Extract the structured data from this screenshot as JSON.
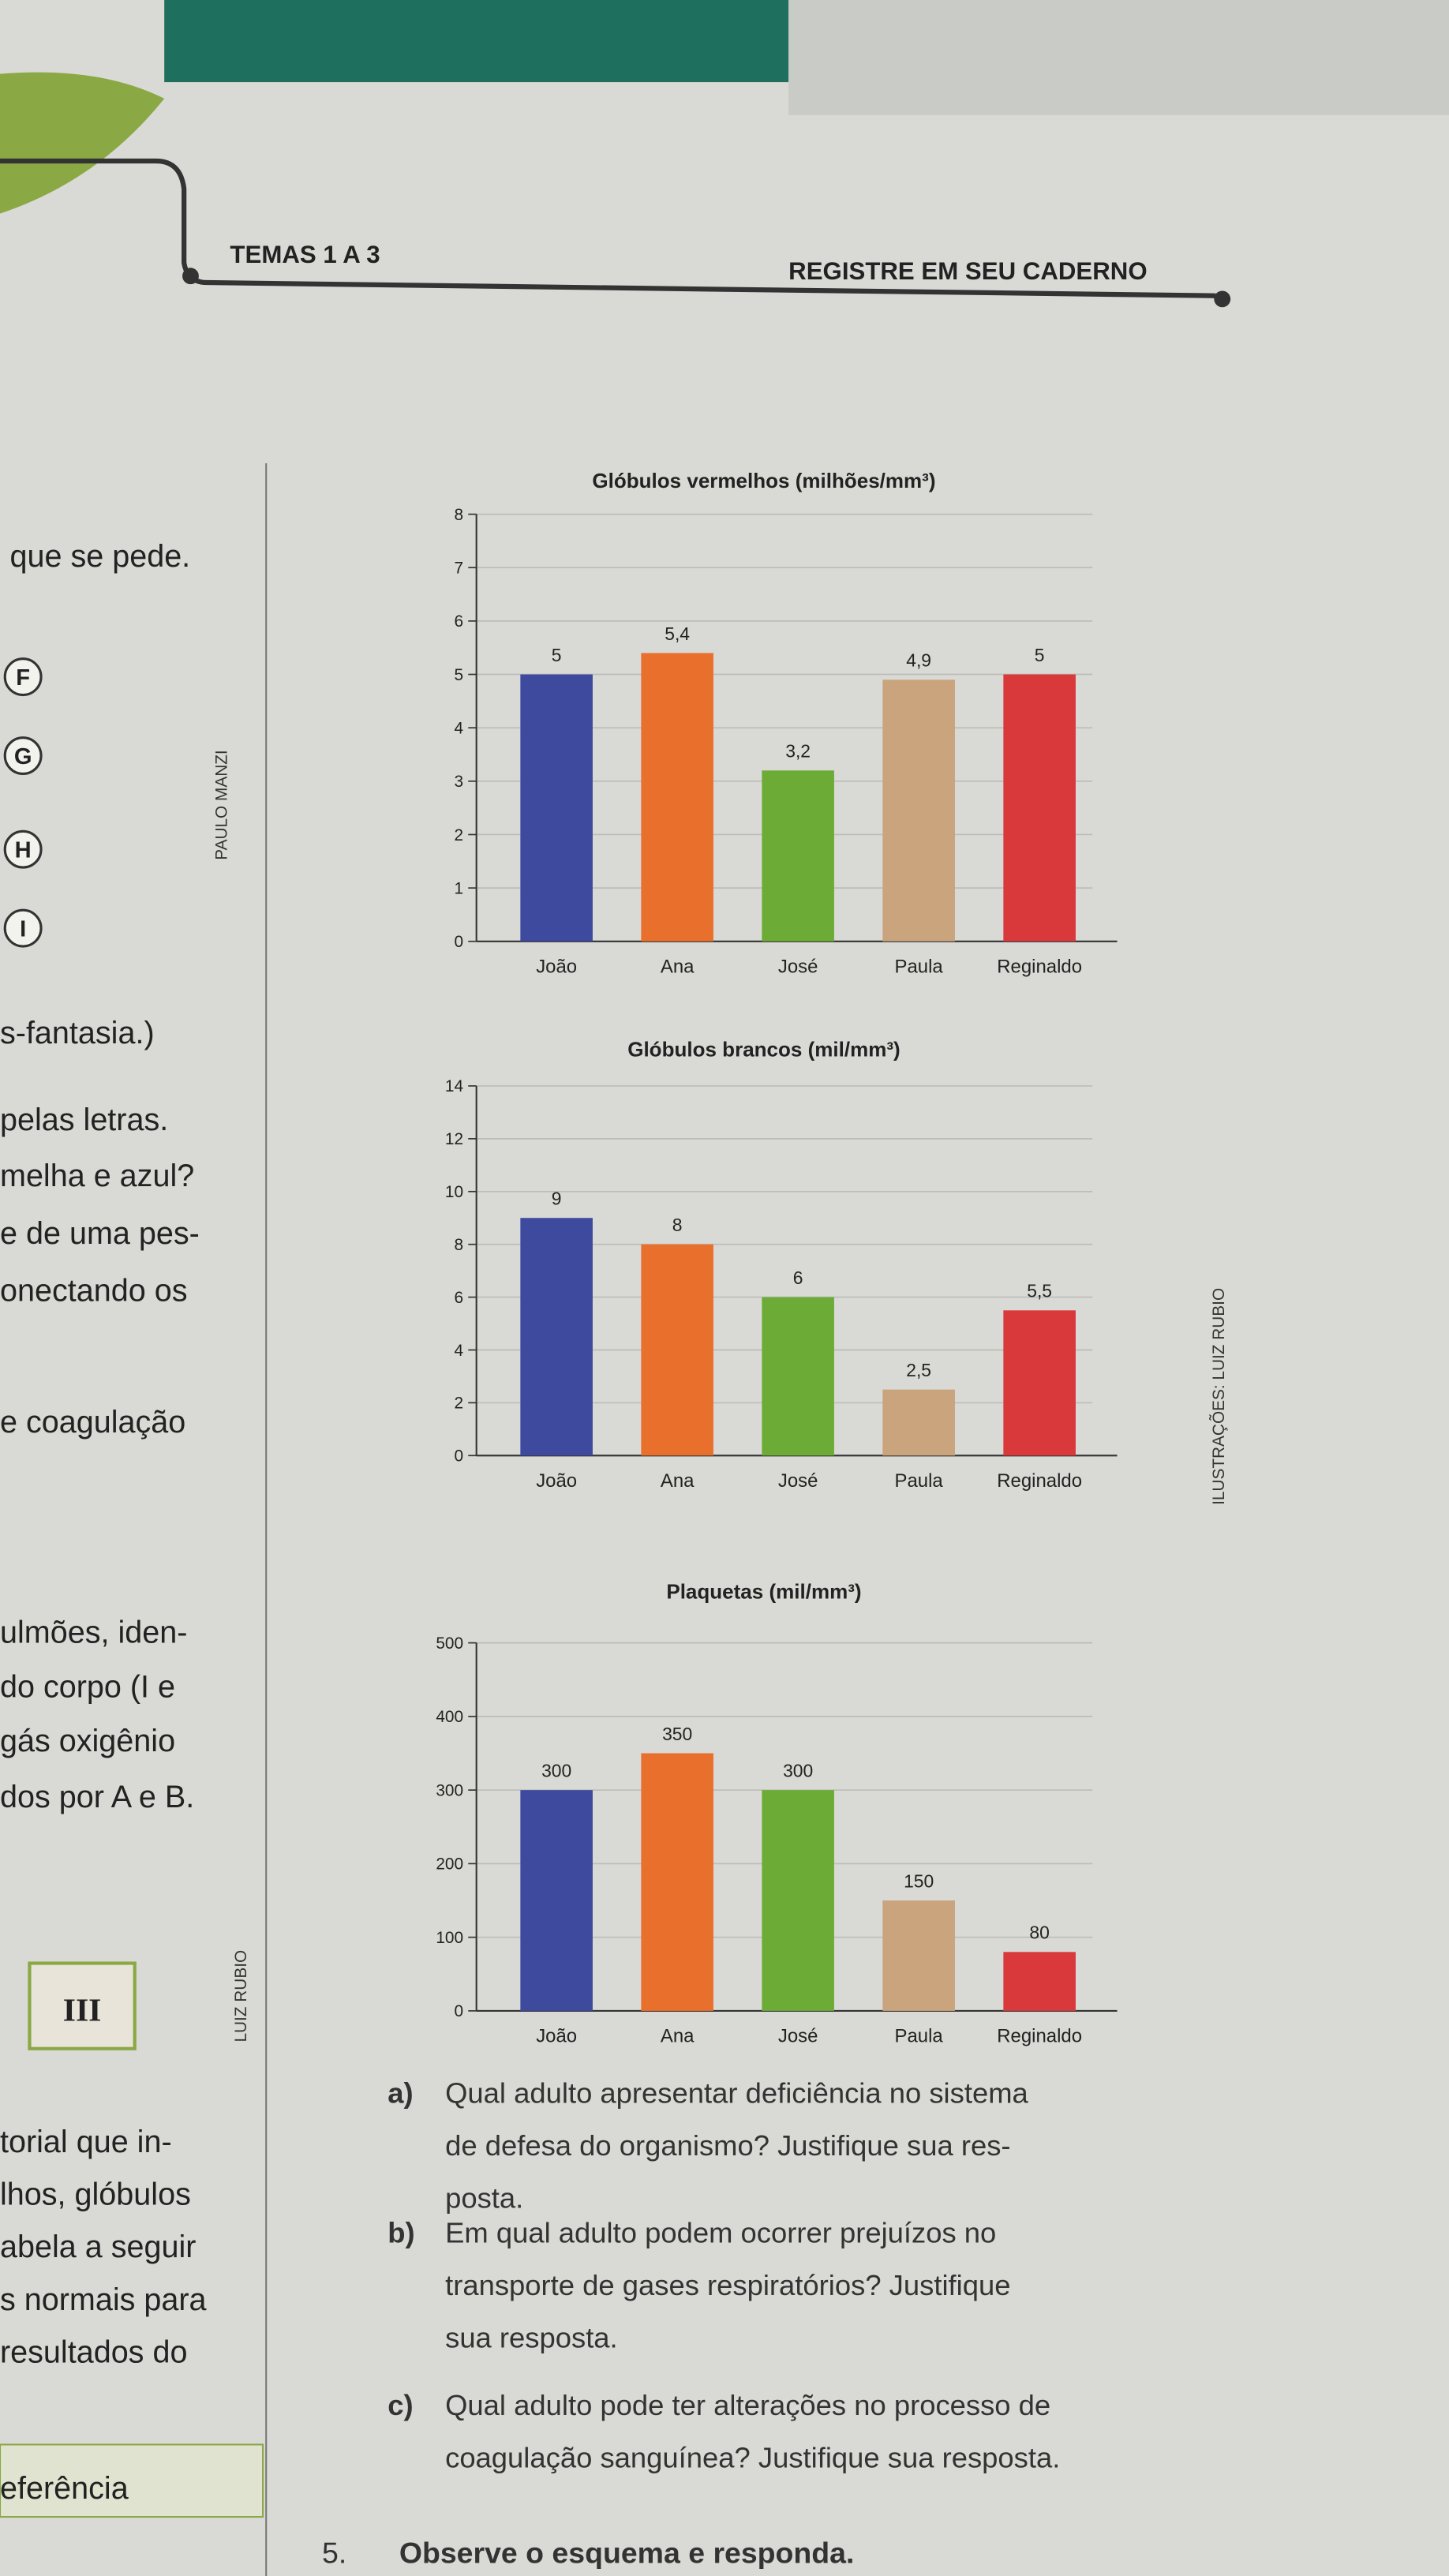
{
  "header": {
    "left": "TEMAS 1 A 3",
    "right": "REGISTRE EM SEU CADERNO"
  },
  "left_column": [
    "que se pede.",
    "s-fantasia.)",
    "pelas letras.",
    "melha e azul?",
    "e de uma pes-",
    "onectando os",
    "e coagulação",
    "ulmões, iden-",
    "do corpo (I e",
    "gás oxigênio",
    "dos por A e B.",
    "torial que in-",
    "lhos, glóbulos",
    "abela a seguir",
    "s normais para",
    "resultados do",
    "eferência"
  ],
  "side_letters": [
    "F",
    "G",
    "H",
    "I"
  ],
  "box_label": "III",
  "credits": [
    "PAULO MANZI",
    "ILUSTRAÇÕES: LUIZ RUBIO",
    "LUIZ RUBIO"
  ],
  "chart_data": [
    {
      "type": "bar",
      "title": "Glóbulos vermelhos (milhões/mm³)",
      "categories": [
        "João",
        "Ana",
        "José",
        "Paula",
        "Reginaldo"
      ],
      "values": [
        5,
        5.4,
        3.2,
        4.9,
        5
      ],
      "value_labels": [
        "5",
        "5,4",
        "3,2",
        "4,9",
        "5"
      ],
      "colors": [
        "#3d4a9e",
        "#e8702c",
        "#6cab36",
        "#c9a47c",
        "#d9393b"
      ],
      "ylim": [
        0,
        8
      ],
      "yticks": [
        0,
        1,
        2,
        3,
        4,
        5,
        6,
        7,
        8
      ],
      "grid": true
    },
    {
      "type": "bar",
      "title": "Glóbulos brancos (mil/mm³)",
      "categories": [
        "João",
        "Ana",
        "José",
        "Paula",
        "Reginaldo"
      ],
      "values": [
        9,
        8,
        6,
        2.5,
        5.5
      ],
      "value_labels": [
        "9",
        "8",
        "6",
        "2,5",
        "5,5"
      ],
      "colors": [
        "#3d4a9e",
        "#e8702c",
        "#6cab36",
        "#c9a47c",
        "#d9393b"
      ],
      "ylim": [
        0,
        14
      ],
      "yticks": [
        0,
        2,
        4,
        6,
        8,
        10,
        12,
        14
      ],
      "grid": true
    },
    {
      "type": "bar",
      "title": "Plaquetas (mil/mm³)",
      "categories": [
        "João",
        "Ana",
        "José",
        "Paula",
        "Reginaldo"
      ],
      "values": [
        300,
        350,
        300,
        150,
        80
      ],
      "colors": [
        "#3d4a9e",
        "#e8702c",
        "#6cab36",
        "#c9a47c",
        "#d9393b"
      ],
      "ylim": [
        0,
        500
      ],
      "yticks": [
        0,
        100,
        200,
        300,
        400,
        500
      ],
      "grid": true
    }
  ],
  "questions": [
    {
      "letter": "a)",
      "lines": [
        "Qual adulto apresentar deficiência no sistema",
        "de defesa do organismo? Justifique sua res-",
        "posta."
      ]
    },
    {
      "letter": "b)",
      "lines": [
        "Em qual adulto podem ocorrer prejuízos no",
        "transporte de gases respiratórios? Justifique",
        "sua resposta."
      ]
    },
    {
      "letter": "c)",
      "lines": [
        "Qual adulto pode ter alterações no processo de",
        "coagulação sanguínea? Justifique sua resposta."
      ]
    }
  ],
  "exercise": {
    "number": "5.",
    "text": "Observe o esquema e responda."
  }
}
